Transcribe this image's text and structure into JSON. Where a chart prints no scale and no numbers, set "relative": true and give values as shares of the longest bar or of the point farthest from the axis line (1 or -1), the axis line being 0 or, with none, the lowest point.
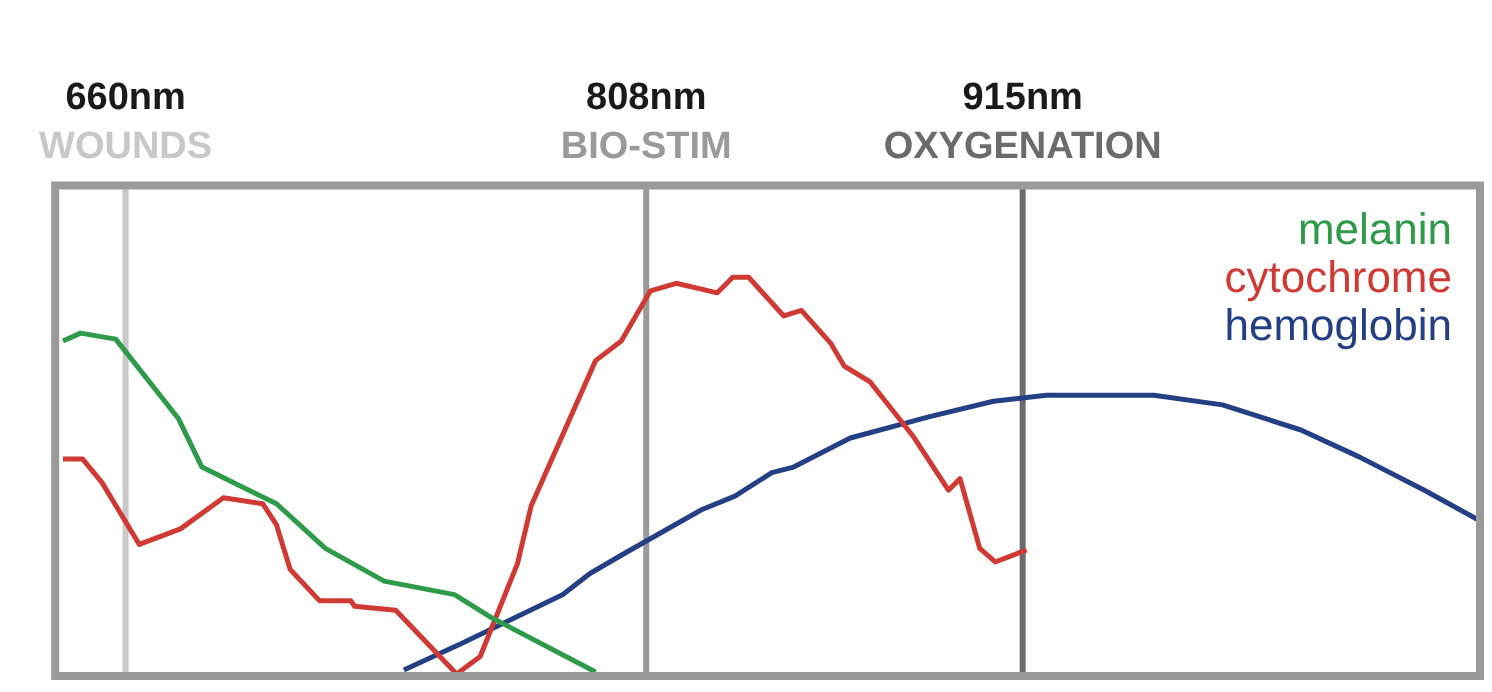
{
  "chart_data": {
    "type": "line",
    "relative": true,
    "marker": "none",
    "line_style": "solid",
    "xlim": [
      640,
      1045
    ],
    "xticks": [
      {
        "value": 660,
        "label": "660nm"
      },
      {
        "value": 808,
        "label": "808nm"
      },
      {
        "value": 915,
        "label": "915nm"
      }
    ],
    "series": [
      {
        "name": "melanin",
        "color": "#2e9a4a",
        "x": [
          642.2,
          647.2,
          657.2,
          675.0,
          681.7,
          702.9,
          716.8,
          733.5,
          753.5,
          764.1,
          793.6
        ],
        "values": [
          0.84,
          0.86,
          0.845,
          0.646,
          0.524,
          0.432,
          0.32,
          0.238,
          0.204,
          0.146,
          0.01
        ]
      },
      {
        "name": "cytochrome",
        "color": "#d03a35",
        "x": [
          642.2,
          647.8,
          653.3,
          663.9,
          675.6,
          687.8,
          699.0,
          702.9,
          706.8,
          715.1,
          724.0,
          725.1,
          736.8,
          754.1,
          760.8,
          771.4,
          775.3,
          793.6,
          800.9,
          809.2,
          816.5,
          828.2,
          832.6,
          837.1,
          847.1,
          852.1,
          860.4,
          864.3,
          871.6,
          883.8,
          893.9,
          897.2,
          902.8,
          907.2,
          916.1
        ],
        "values": [
          0.544,
          0.544,
          0.485,
          0.33,
          0.369,
          0.447,
          0.432,
          0.379,
          0.267,
          0.189,
          0.189,
          0.175,
          0.165,
          0.005,
          0.049,
          0.282,
          0.427,
          0.791,
          0.84,
          0.966,
          0.985,
          0.961,
          1.0,
          1.0,
          0.903,
          0.917,
          0.835,
          0.777,
          0.738,
          0.602,
          0.466,
          0.495,
          0.32,
          0.286,
          0.316
        ]
      },
      {
        "name": "hemoglobin",
        "color": "#253f85",
        "x": [
          739.1,
          755.8,
          784.2,
          792.0,
          802.5,
          823.7,
          833.2,
          843.7,
          849.9,
          866.0,
          888.3,
          906.7,
          921.7,
          952.3,
          971.8,
          994.1,
          1010.8,
          1029.2,
          1044.2
        ],
        "values": [
          0.015,
          0.083,
          0.204,
          0.257,
          0.311,
          0.417,
          0.451,
          0.51,
          0.524,
          0.597,
          0.65,
          0.689,
          0.704,
          0.704,
          0.68,
          0.617,
          0.549,
          0.466,
          0.393
        ]
      }
    ],
    "ref_lines": [
      {
        "axis": "x",
        "value": 660,
        "label": "WOUNDS",
        "color": "#c8c8c8"
      },
      {
        "axis": "x",
        "value": 808,
        "label": "BIO-STIM",
        "color": "#9a9a9a"
      },
      {
        "axis": "x",
        "value": 915,
        "label": "OXYGENATION",
        "color": "#6b6b6b"
      }
    ]
  }
}
